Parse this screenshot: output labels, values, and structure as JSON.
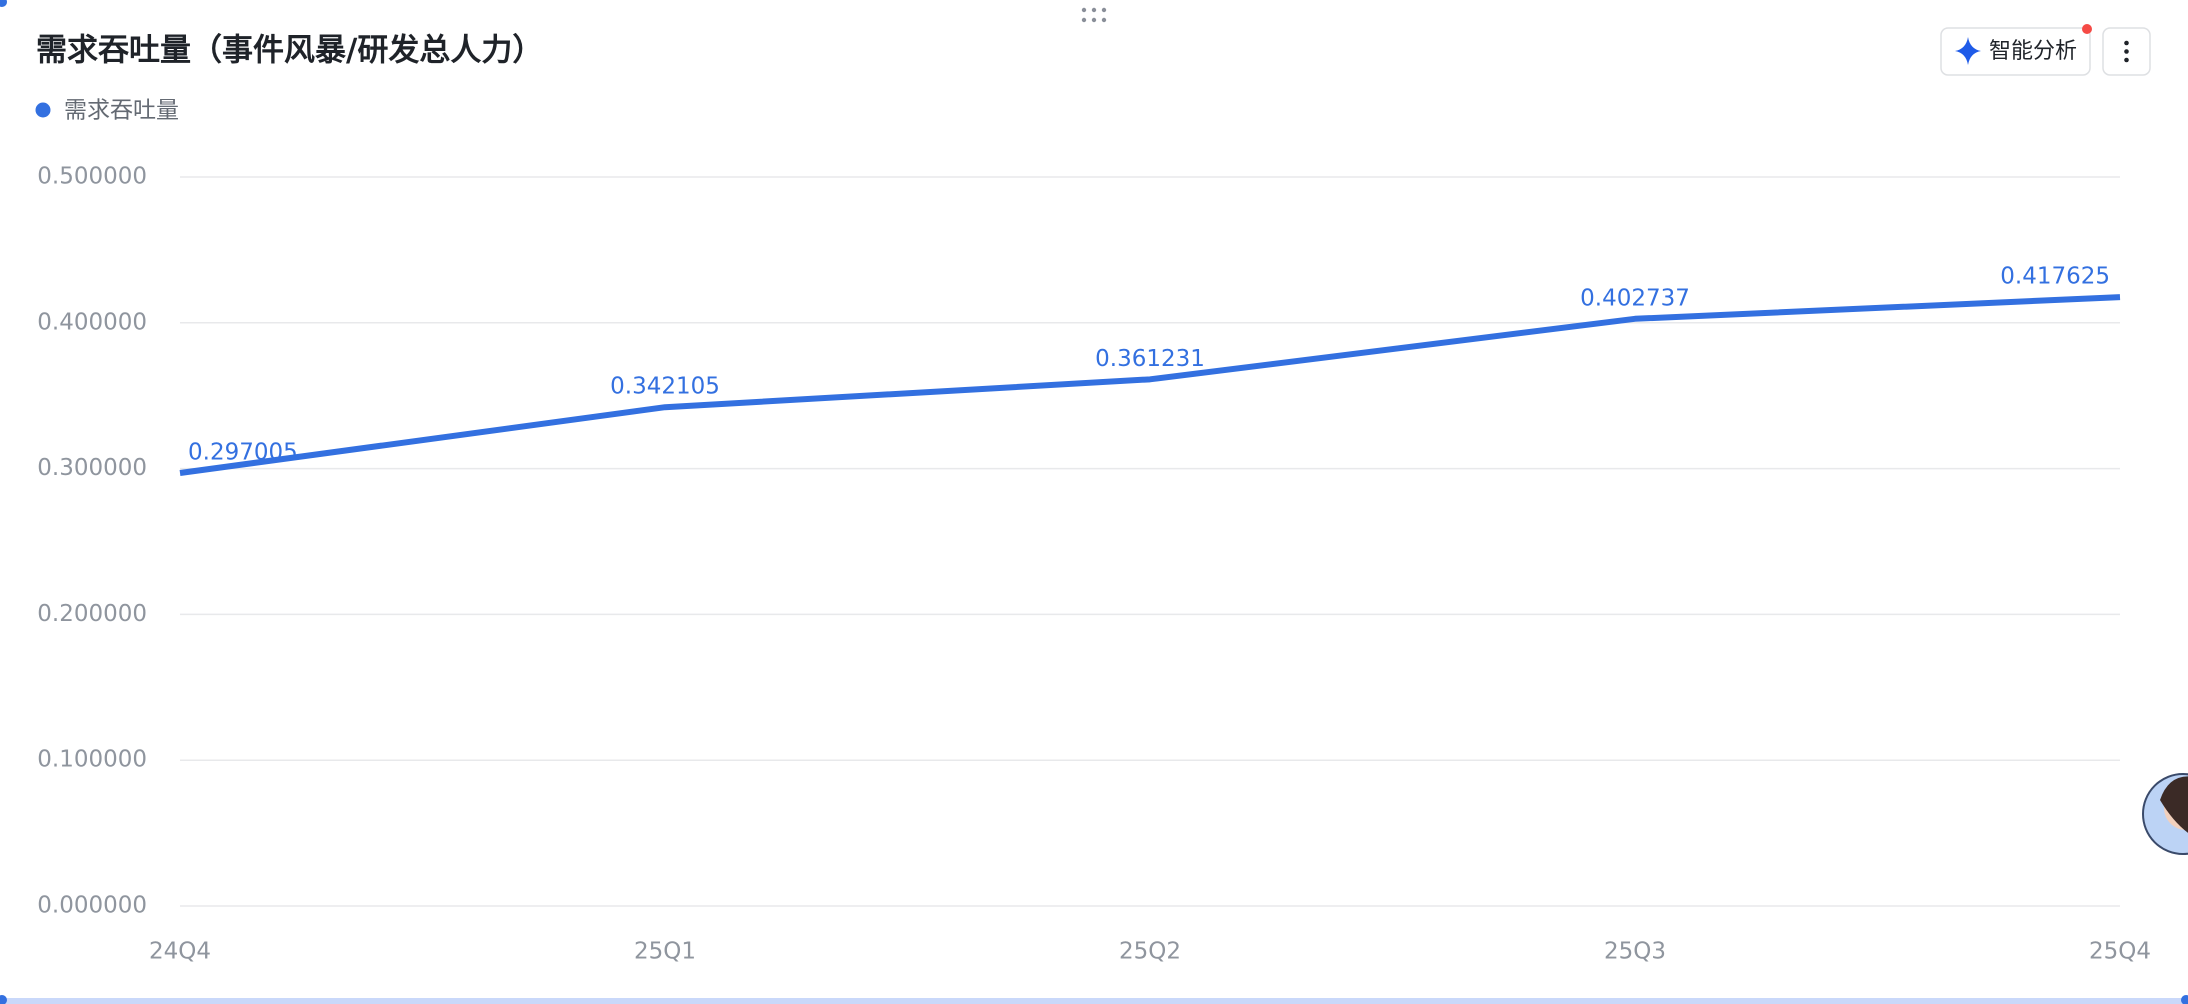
{
  "chart_data": {
    "type": "line",
    "title": "需求吞吐量（事件风暴/研发总人力）",
    "categories": [
      "24Q4",
      "25Q1",
      "25Q2",
      "25Q3",
      "25Q4"
    ],
    "series": [
      {
        "name": "需求吞吐量",
        "color": "#3370e0",
        "values": [
          0.297005,
          0.342105,
          0.361231,
          0.402737,
          0.417625
        ]
      }
    ],
    "ylim": [
      0,
      0.5
    ],
    "yticks": [
      {
        "value": 0,
        "label": "0.000000"
      },
      {
        "value": 0.1,
        "label": "0.100000"
      },
      {
        "value": 0.2,
        "label": "0.200000"
      },
      {
        "value": 0.3,
        "label": "0.300000"
      },
      {
        "value": 0.4,
        "label": "0.400000"
      },
      {
        "value": 0.5,
        "label": "0.500000"
      }
    ],
    "grid": true,
    "legend": "top-left"
  },
  "toolbar": {
    "ai_button": "智能分析"
  }
}
